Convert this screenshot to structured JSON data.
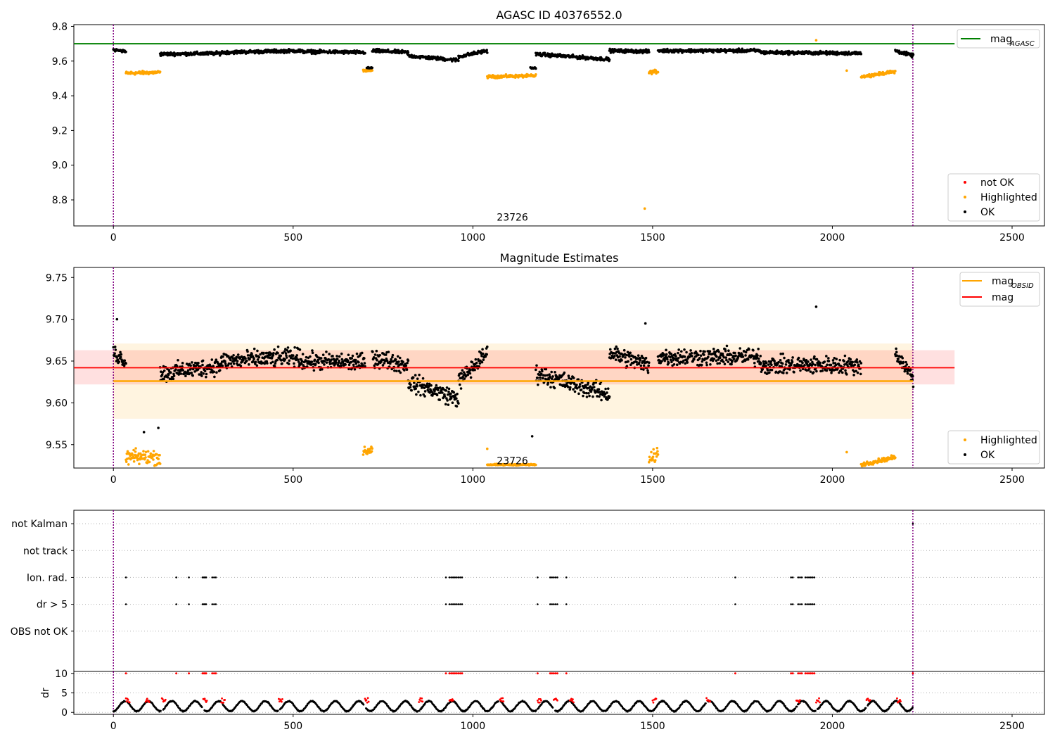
{
  "chart_data": [
    {
      "type": "scatter",
      "title": "AGASC ID 40376552.0",
      "xlabel": "",
      "ylabel": "",
      "xlim": [
        -110,
        2590
      ],
      "ylim": [
        8.65,
        9.81
      ],
      "x_ticks": [
        0,
        500,
        1000,
        1500,
        2000,
        2500
      ],
      "y_ticks": [
        8.8,
        9.0,
        9.2,
        9.4,
        9.6,
        9.8
      ],
      "grid": false,
      "colors": {
        "agasc_line": "#008000",
        "not_ok": "#ff0000",
        "highlighted": "#ffa500",
        "ok": "#000000",
        "obsid_boundary": "#800080"
      },
      "reference_lines": [
        {
          "name": "mag",
          "subscript": "AGASC",
          "y": 9.7,
          "x_range": [
            -110,
            2340
          ]
        }
      ],
      "obsid_boundaries": [
        0,
        2224
      ],
      "annotations": [
        {
          "text": "23726",
          "x": 1110,
          "y": 8.7
        }
      ],
      "legends": [
        {
          "placement": "top-right",
          "entries": [
            {
              "label": "mag",
              "subscript": "AGASC",
              "kind": "line",
              "color": "#008000"
            }
          ]
        },
        {
          "placement": "bottom-right",
          "entries": [
            {
              "label": "not OK",
              "kind": "point",
              "color": "#ff0000"
            },
            {
              "label": "Highlighted",
              "kind": "point",
              "color": "#ffa500"
            },
            {
              "label": "OK",
              "kind": "point",
              "color": "#000000"
            }
          ]
        }
      ],
      "series": [
        {
          "name": "OK",
          "segments": [
            {
              "x": [
                0,
                35
              ],
              "y": [
                9.665,
                9.655
              ],
              "noise": 0.01
            },
            {
              "x": [
                130,
                300
              ],
              "y": [
                9.64,
                9.645
              ],
              "noise": 0.012
            },
            {
              "x": [
                300,
                520
              ],
              "y": [
                9.65,
                9.66
              ],
              "noise": 0.012
            },
            {
              "x": [
                520,
                700
              ],
              "y": [
                9.655,
                9.65
              ],
              "noise": 0.012
            },
            {
              "x": [
                705,
                720
              ],
              "y": [
                9.56,
                9.56
              ],
              "noise": 0.005
            },
            {
              "x": [
                720,
                820
              ],
              "y": [
                9.66,
                9.65
              ],
              "noise": 0.012
            },
            {
              "x": [
                820,
                960
              ],
              "y": [
                9.63,
                9.605
              ],
              "noise": 0.012
            },
            {
              "x": [
                960,
                1040
              ],
              "y": [
                9.625,
                9.66
              ],
              "noise": 0.012
            },
            {
              "x": [
                1160,
                1175
              ],
              "y": [
                9.56,
                9.56
              ],
              "noise": 0.005
            },
            {
              "x": [
                1175,
                1380
              ],
              "y": [
                9.64,
                9.61
              ],
              "noise": 0.012
            },
            {
              "x": [
                1380,
                1490
              ],
              "y": [
                9.66,
                9.655
              ],
              "noise": 0.012
            },
            {
              "x": [
                1515,
                1800
              ],
              "y": [
                9.66,
                9.66
              ],
              "noise": 0.012
            },
            {
              "x": [
                1800,
                2080
              ],
              "y": [
                9.65,
                9.645
              ],
              "noise": 0.012
            },
            {
              "x": [
                2175,
                2225
              ],
              "y": [
                9.66,
                9.63
              ],
              "noise": 0.012
            }
          ]
        },
        {
          "name": "Highlighted",
          "segments": [
            {
              "x": [
                35,
                130
              ],
              "y": [
                9.53,
                9.535
              ],
              "noise": 0.012
            },
            {
              "x": [
                695,
                720
              ],
              "y": [
                9.545,
                9.545
              ],
              "noise": 0.006
            },
            {
              "x": [
                1040,
                1175
              ],
              "y": [
                9.51,
                9.515
              ],
              "noise": 0.01
            },
            {
              "x": [
                1490,
                1515
              ],
              "y": [
                9.535,
                9.54
              ],
              "noise": 0.012
            },
            {
              "x": [
                2080,
                2175
              ],
              "y": [
                9.51,
                9.54
              ],
              "noise": 0.01
            }
          ],
          "points": [
            {
              "x": 1478,
              "y": 8.75
            },
            {
              "x": 1955,
              "y": 9.72
            },
            {
              "x": 2040,
              "y": 9.545
            }
          ]
        }
      ]
    },
    {
      "type": "scatter",
      "title": "Magnitude Estimates",
      "xlabel": "",
      "ylabel": "",
      "xlim": [
        -110,
        2590
      ],
      "ylim": [
        9.522,
        9.762
      ],
      "x_ticks": [
        0,
        500,
        1000,
        1500,
        2000,
        2500
      ],
      "y_ticks": [
        9.55,
        9.6,
        9.65,
        9.7,
        9.75
      ],
      "grid": false,
      "obsid_boundaries": [
        0,
        2224
      ],
      "reference_lines": [
        {
          "name": "mag",
          "subscript": "OBSID",
          "y": 9.626,
          "x_range": [
            0,
            2224
          ],
          "color": "#ffa500",
          "band": [
            9.581,
            9.671
          ]
        },
        {
          "name": "mag",
          "y": 9.642,
          "x_range": [
            -110,
            2340
          ],
          "color": "#ff0000",
          "band": [
            9.622,
            9.663
          ]
        }
      ],
      "annotations": [
        {
          "text": "23726",
          "x": 1110,
          "y": 9.53
        }
      ],
      "legends": [
        {
          "placement": "top-right",
          "entries": [
            {
              "label": "mag",
              "subscript": "OBSID",
              "kind": "line",
              "color": "#ffa500"
            },
            {
              "label": "mag",
              "kind": "line",
              "color": "#ff0000"
            }
          ]
        },
        {
          "placement": "bottom-right",
          "entries": [
            {
              "label": "Highlighted",
              "kind": "point",
              "color": "#ffa500"
            },
            {
              "label": "OK",
              "kind": "point",
              "color": "#000000"
            }
          ]
        }
      ],
      "series": [
        {
          "name": "OK",
          "segments": [
            {
              "x": [
                0,
                35
              ],
              "y": [
                9.66,
                9.65
              ],
              "noise": 0.012
            },
            {
              "x": [
                130,
                300
              ],
              "y": [
                9.635,
                9.645
              ],
              "noise": 0.013
            },
            {
              "x": [
                300,
                520
              ],
              "y": [
                9.65,
                9.655
              ],
              "noise": 0.013
            },
            {
              "x": [
                520,
                700
              ],
              "y": [
                9.65,
                9.648
              ],
              "noise": 0.013
            },
            {
              "x": [
                720,
                820
              ],
              "y": [
                9.655,
                9.645
              ],
              "noise": 0.013
            },
            {
              "x": [
                820,
                960
              ],
              "y": [
                9.625,
                9.605
              ],
              "noise": 0.013
            },
            {
              "x": [
                960,
                1040
              ],
              "y": [
                9.625,
                9.66
              ],
              "noise": 0.013
            },
            {
              "x": [
                1175,
                1380
              ],
              "y": [
                9.635,
                9.61
              ],
              "noise": 0.013
            },
            {
              "x": [
                1380,
                1490
              ],
              "y": [
                9.66,
                9.645
              ],
              "noise": 0.013
            },
            {
              "x": [
                1515,
                1800
              ],
              "y": [
                9.655,
                9.655
              ],
              "noise": 0.013
            },
            {
              "x": [
                1800,
                2080
              ],
              "y": [
                9.645,
                9.645
              ],
              "noise": 0.013
            },
            {
              "x": [
                2175,
                2225
              ],
              "y": [
                9.66,
                9.63
              ],
              "noise": 0.012
            }
          ],
          "points": [
            {
              "x": 10,
              "y": 9.7
            },
            {
              "x": 1480,
              "y": 9.695
            },
            {
              "x": 1955,
              "y": 9.715
            },
            {
              "x": 85,
              "y": 9.565
            },
            {
              "x": 125,
              "y": 9.57
            },
            {
              "x": 1165,
              "y": 9.56
            }
          ]
        },
        {
          "name": "Highlighted",
          "segments": [
            {
              "x": [
                35,
                130
              ],
              "y": [
                9.535,
                9.535
              ],
              "noise": 0.011
            },
            {
              "x": [
                695,
                720
              ],
              "y": [
                9.54,
                9.545
              ],
              "noise": 0.007
            },
            {
              "x": [
                1040,
                1175
              ],
              "y": [
                9.526,
                9.526
              ],
              "noise": 0.001
            },
            {
              "x": [
                1490,
                1515
              ],
              "y": [
                9.53,
                9.54
              ],
              "noise": 0.01
            },
            {
              "x": [
                2080,
                2175
              ],
              "y": [
                9.526,
                9.535
              ],
              "noise": 0.003
            }
          ],
          "points": [
            {
              "x": 1040,
              "y": 9.545
            },
            {
              "x": 2040,
              "y": 9.541
            }
          ]
        }
      ]
    },
    {
      "type": "scatter",
      "title": "",
      "xlabel": "",
      "ylabel": "",
      "xlim": [
        -110,
        2590
      ],
      "ylim": [
        -0.5,
        5.5
      ],
      "y_ticks": [
        "OBS not OK",
        "dr > 5",
        "Ion. rad.",
        "not track",
        "not Kalman"
      ],
      "grid": "horizontal dotted",
      "obsid_boundaries": [
        0,
        2224
      ],
      "series": [
        {
          "name": "dr > 5",
          "x": [
            35,
            175,
            210,
            248,
            252,
            255,
            258,
            275,
            280,
            285,
            925,
            935,
            940,
            945,
            950,
            955,
            960,
            965,
            970,
            1180,
            1215,
            1220,
            1225,
            1230,
            1235,
            1260,
            1730,
            1885,
            1890,
            1905,
            1910,
            1915,
            1925,
            1930,
            1935,
            1940,
            1945,
            1950
          ]
        },
        {
          "name": "Ion. rad.",
          "x": [
            35,
            175,
            210,
            248,
            252,
            255,
            258,
            275,
            280,
            285,
            925,
            935,
            940,
            945,
            950,
            955,
            960,
            965,
            970,
            1180,
            1215,
            1220,
            1225,
            1230,
            1235,
            1260,
            1730,
            1885,
            1890,
            1905,
            1910,
            1915,
            1925,
            1930,
            1935,
            1940,
            1945,
            1950
          ]
        },
        {
          "name": "not Kalman",
          "x": [
            2224
          ]
        }
      ]
    },
    {
      "type": "scatter",
      "title": "",
      "xlabel": "",
      "ylabel": "dr",
      "xlim": [
        -110,
        2590
      ],
      "ylim": [
        -0.5,
        10.5
      ],
      "x_ticks": [
        0,
        500,
        1000,
        1500,
        2000,
        2500
      ],
      "y_ticks": [
        0,
        5,
        10
      ],
      "grid": "horizontal dotted",
      "obsid_boundaries": [
        0,
        2224
      ],
      "arc_period": 65,
      "arc_breaks": [
        35,
        90,
        135,
        250,
        300,
        460,
        700,
        850,
        935,
        1075,
        1180,
        1225,
        1270,
        1500,
        1650,
        1900,
        1955,
        2095,
        2180
      ],
      "series": [
        {
          "name": "OK",
          "description_range": [
            0,
            3.6
          ]
        },
        {
          "name": "not OK",
          "x": [
            35,
            175,
            210,
            248,
            252,
            255,
            258,
            275,
            280,
            285,
            925,
            935,
            940,
            945,
            950,
            955,
            960,
            965,
            970,
            1180,
            1215,
            1220,
            1225,
            1230,
            1235,
            1260,
            1730,
            1885,
            1890,
            1905,
            1910,
            1915,
            1925,
            1930,
            1935,
            1940,
            1945,
            1950,
            2224
          ],
          "y": 10
        }
      ]
    }
  ]
}
